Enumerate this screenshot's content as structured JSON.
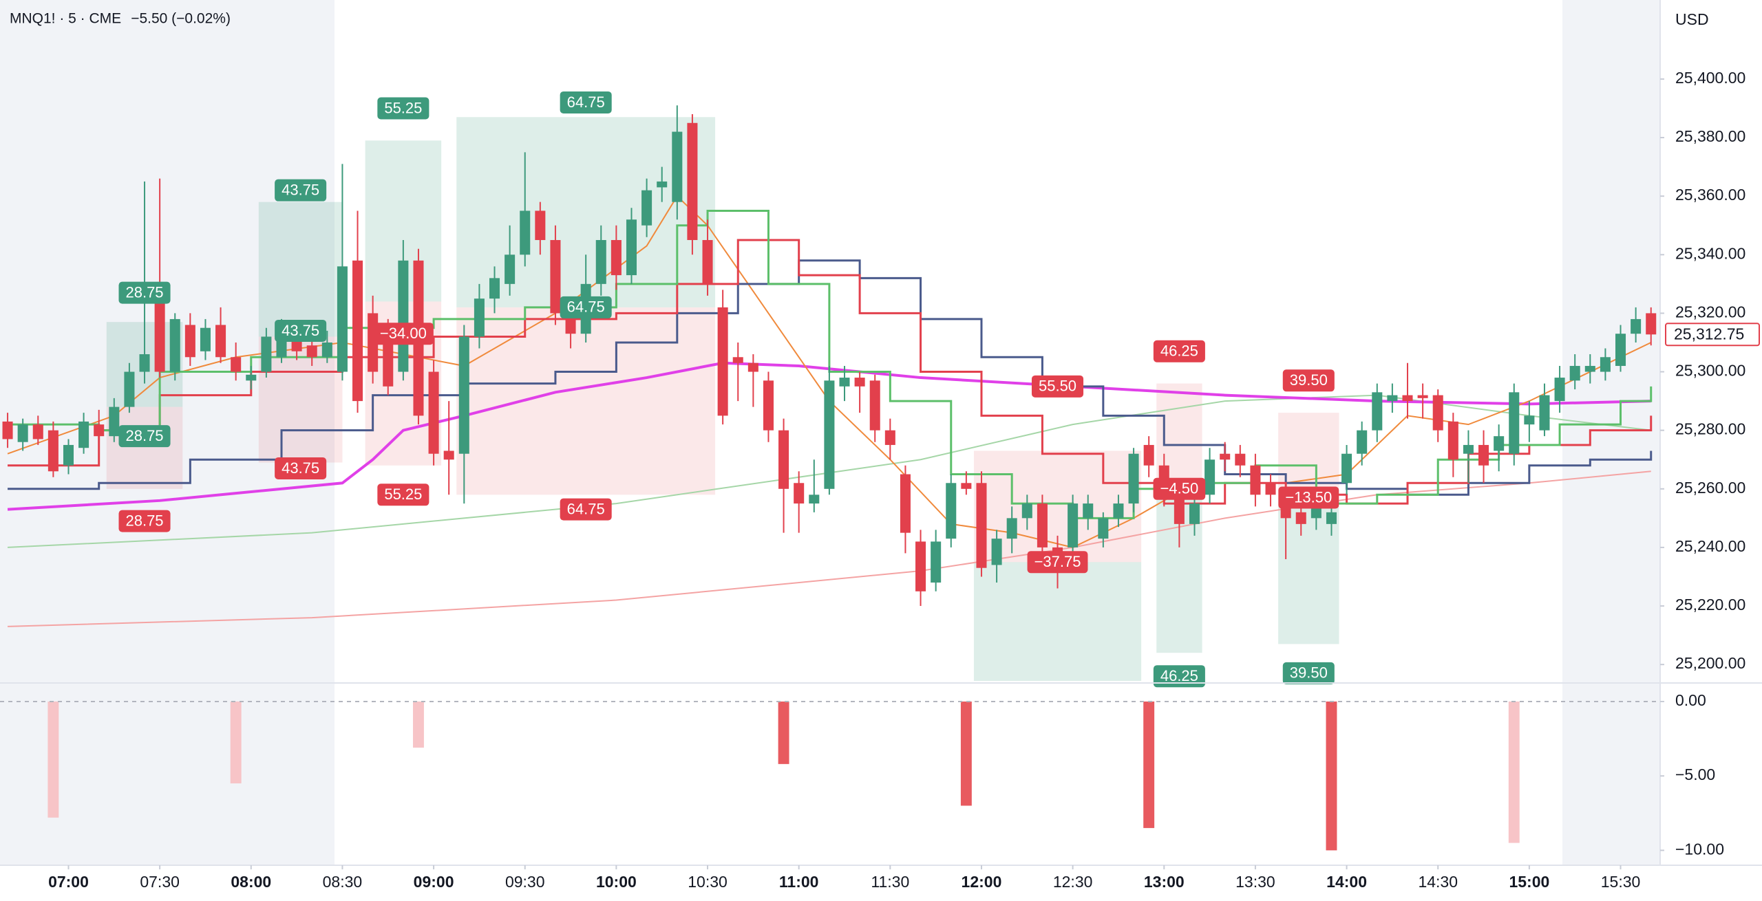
{
  "chart_data": {
    "type": "candlestick",
    "title": "MNQ1! · 5 · CME",
    "change": "−5.50 (−0.02%)",
    "change_color": "#e2404c",
    "currency": "USD",
    "up_color": "#3d9a7c",
    "down_color": "#e2404c",
    "open": [
      25283,
      25276,
      25282,
      25280,
      25268,
      25274,
      25282,
      25278,
      25288,
      25300,
      25330,
      25300,
      25316,
      25307,
      25316,
      25305,
      25297,
      25300,
      25305,
      25312,
      25309,
      25305,
      25300,
      25338,
      25320,
      25315,
      25300,
      25338,
      25300,
      25273,
      25272,
      25312,
      25325,
      25330,
      25340,
      25355,
      25345,
      25320,
      25313,
      25330,
      25345,
      25333,
      25350,
      25363,
      25358,
      25385,
      25345,
      25322,
      25305,
      25303,
      25297,
      25280,
      25262,
      25255,
      25260,
      25295,
      25298,
      25297,
      25280,
      25265,
      25242,
      25228,
      25243,
      25262,
      25262,
      25234,
      25243,
      25250,
      25255,
      25240,
      25240,
      25250,
      25243,
      25250,
      25255,
      25275,
      25268,
      25258,
      25248,
      25258,
      25272,
      25272,
      25268,
      25262,
      25255,
      25252,
      25250,
      25248,
      25262,
      25272,
      25280,
      25290,
      25292,
      25292,
      25292,
      25283,
      25272,
      25275,
      25273,
      25272,
      25282,
      25280,
      25290,
      25297,
      25300,
      25300,
      25302,
      25313,
      25320
    ],
    "high": [
      25286,
      25284,
      25285,
      25283,
      25277,
      25286,
      25287,
      25291,
      25303,
      25365,
      25366,
      25320,
      25320,
      25318,
      25322,
      25310,
      25302,
      25315,
      25318,
      25316,
      25313,
      25314,
      25371,
      25355,
      25326,
      25318,
      25345,
      25342,
      25304,
      25290,
      25316,
      25330,
      25336,
      25350,
      25375,
      25358,
      25350,
      25324,
      25340,
      25350,
      25350,
      25356,
      25366,
      25370,
      25391,
      25388,
      25352,
      25328,
      25310,
      25306,
      25300,
      25284,
      25266,
      25270,
      25302,
      25302,
      25300,
      25299,
      25284,
      25268,
      25246,
      25246,
      25265,
      25266,
      25266,
      25246,
      25254,
      25258,
      25258,
      25244,
      25258,
      25258,
      25252,
      25258,
      25274,
      25278,
      25272,
      25262,
      25258,
      25274,
      25276,
      25275,
      25272,
      25265,
      25258,
      25256,
      25258,
      25254,
      25275,
      25283,
      25296,
      25296,
      25303,
      25296,
      25294,
      25286,
      25280,
      25280,
      25282,
      25296,
      25290,
      25296,
      25302,
      25306,
      25306,
      25308,
      25316,
      25322,
      25322
    ],
    "low": [
      25274,
      25273,
      25275,
      25264,
      25265,
      25272,
      25276,
      25276,
      25286,
      25296,
      25298,
      25297,
      25302,
      25304,
      25303,
      25297,
      25294,
      25298,
      25303,
      25304,
      25302,
      25303,
      25297,
      25286,
      25296,
      25292,
      25297,
      25282,
      25268,
      25258,
      25255,
      25308,
      25320,
      25326,
      25336,
      25340,
      25316,
      25308,
      25310,
      25326,
      25328,
      25330,
      25346,
      25358,
      25352,
      25340,
      25326,
      25282,
      25290,
      25288,
      25276,
      25245,
      25245,
      25252,
      25258,
      25290,
      25286,
      25276,
      25270,
      25238,
      25220,
      25225,
      25240,
      25258,
      25230,
      25228,
      25238,
      25246,
      25236,
      25226,
      25236,
      25246,
      25240,
      25247,
      25252,
      25264,
      25254,
      25240,
      25244,
      25255,
      25266,
      25264,
      25254,
      25254,
      25236,
      25244,
      25246,
      25244,
      25258,
      25268,
      25276,
      25286,
      25284,
      25284,
      25276,
      25264,
      25262,
      25262,
      25266,
      25268,
      25276,
      25278,
      25286,
      25294,
      25296,
      25297,
      25300,
      25310,
      25309
    ],
    "close": [
      25277,
      25282,
      25277,
      25266,
      25275,
      25283,
      25278,
      25288,
      25300,
      25306,
      25300,
      25318,
      25305,
      25315,
      25305,
      25300,
      25299,
      25312,
      25315,
      25307,
      25305,
      25310,
      25336,
      25290,
      25300,
      25295,
      25338,
      25285,
      25272,
      25270,
      25312,
      25325,
      25332,
      25340,
      25355,
      25345,
      25320,
      25313,
      25330,
      25345,
      25333,
      25352,
      25362,
      25365,
      25382,
      25345,
      25330,
      25285,
      25303,
      25300,
      25280,
      25260,
      25255,
      25258,
      25297,
      25298,
      25295,
      25280,
      25275,
      25245,
      25225,
      25242,
      25262,
      25260,
      25233,
      25243,
      25250,
      25255,
      25240,
      25235,
      25255,
      25255,
      25250,
      25255,
      25272,
      25268,
      25258,
      25248,
      25255,
      25270,
      25270,
      25268,
      25258,
      25258,
      25250,
      25248,
      25255,
      25252,
      25272,
      25280,
      25293,
      25292,
      25290,
      25291,
      25280,
      25270,
      25275,
      25268,
      25278,
      25293,
      25285,
      25292,
      25298,
      25302,
      25302,
      25305,
      25313,
      25318,
      25312.75
    ],
    "last_price_label": "25,312.75",
    "xlim": [
      -0.5,
      108.6
    ],
    "ylim": [
      25194.4,
      25427
    ],
    "yticks": [
      {
        "value": 25200,
        "label": "25,200.00"
      },
      {
        "value": 25220,
        "label": "25,220.00"
      },
      {
        "value": 25240,
        "label": "25,240.00"
      },
      {
        "value": 25260,
        "label": "25,260.00"
      },
      {
        "value": 25280,
        "label": "25,280.00"
      },
      {
        "value": 25300,
        "label": "25,300.00"
      },
      {
        "value": 25320,
        "label": "25,320.00"
      },
      {
        "value": 25340,
        "label": "25,340.00"
      },
      {
        "value": 25360,
        "label": "25,360.00"
      },
      {
        "value": 25380,
        "label": "25,380.00"
      },
      {
        "value": 25400,
        "label": "25,400.00"
      }
    ],
    "xticks": [
      {
        "value": 4,
        "label": "07:00",
        "bold": true
      },
      {
        "value": 10,
        "label": "07:30",
        "bold": false
      },
      {
        "value": 16,
        "label": "08:00",
        "bold": true
      },
      {
        "value": 22,
        "label": "08:30",
        "bold": false
      },
      {
        "value": 28,
        "label": "09:00",
        "bold": true
      },
      {
        "value": 34,
        "label": "09:30",
        "bold": false
      },
      {
        "value": 40,
        "label": "10:00",
        "bold": true
      },
      {
        "value": 46,
        "label": "10:30",
        "bold": false
      },
      {
        "value": 52,
        "label": "11:00",
        "bold": true
      },
      {
        "value": 58,
        "label": "11:30",
        "bold": false
      },
      {
        "value": 64,
        "label": "12:00",
        "bold": true
      },
      {
        "value": 70,
        "label": "12:30",
        "bold": false
      },
      {
        "value": 76,
        "label": "13:00",
        "bold": true
      },
      {
        "value": 82,
        "label": "13:30",
        "bold": false
      },
      {
        "value": 88,
        "label": "14:00",
        "bold": true
      },
      {
        "value": 94,
        "label": "14:30",
        "bold": false
      },
      {
        "value": 100,
        "label": "15:00",
        "bold": true
      },
      {
        "value": 106,
        "label": "15:30",
        "bold": false
      }
    ],
    "lines": [
      {
        "color": "#a5d6a7",
        "width": 2,
        "step": false,
        "x": [
          0,
          20,
          40,
          60,
          70,
          80,
          90,
          100,
          108
        ],
        "values": [
          25240,
          25245,
          25255,
          25270,
          25282,
          25290,
          25292,
          25285,
          25280
        ]
      },
      {
        "color": "#f4a3a3",
        "width": 2,
        "step": false,
        "x": [
          0,
          20,
          40,
          60,
          70,
          80,
          90,
          100,
          108
        ],
        "values": [
          25213,
          25216,
          25222,
          25232,
          25240,
          25250,
          25258,
          25262,
          25266
        ]
      },
      {
        "color": "#e040e8",
        "width": 4,
        "step": false,
        "x": [
          0,
          10,
          16,
          22,
          24,
          26,
          30,
          36,
          42,
          47,
          52,
          60,
          70,
          80,
          90,
          100,
          108
        ],
        "values": [
          25253,
          25256,
          25259,
          25262,
          25270,
          25280,
          25285,
          25293,
          25298,
          25303,
          25302,
          25298,
          25295,
          25292,
          25290,
          25289,
          25290
        ]
      },
      {
        "color": "#f08a3c",
        "width": 2,
        "step": false,
        "x": [
          0,
          7,
          10,
          15,
          22,
          30,
          36,
          42,
          44,
          46,
          50,
          54,
          58,
          62,
          66,
          70,
          74,
          78,
          84,
          88,
          92,
          96,
          100,
          104,
          108
        ],
        "values": [
          25272,
          25285,
          25298,
          25305,
          25310,
          25302,
          25320,
          25343,
          25360,
          25350,
          25320,
          25290,
          25270,
          25248,
          25245,
          25240,
          25250,
          25262,
          25262,
          25265,
          25285,
          25282,
          25290,
          25300,
          25310
        ]
      },
      {
        "color": "#4a5a8c",
        "width": 3,
        "step": true,
        "x": [
          0,
          6,
          12,
          18,
          24,
          30,
          36,
          40,
          44,
          48,
          52,
          56,
          60,
          64,
          68,
          72,
          76,
          80,
          84,
          88,
          92,
          96,
          100,
          104,
          108
        ],
        "values": [
          25260,
          25262,
          25270,
          25280,
          25292,
          25296,
          25300,
          25310,
          25320,
          25330,
          25338,
          25332,
          25318,
          25305,
          25295,
          25285,
          25275,
          25265,
          25262,
          25260,
          25258,
          25262,
          25268,
          25270,
          25273
        ]
      },
      {
        "color": "#e2404c",
        "width": 3,
        "step": true,
        "x": [
          0,
          6,
          10,
          16,
          22,
          28,
          34,
          40,
          44,
          48,
          52,
          56,
          60,
          64,
          68,
          72,
          76,
          80,
          84,
          88,
          92,
          96,
          100,
          104,
          108
        ],
        "values": [
          25268,
          25280,
          25292,
          25300,
          25305,
          25312,
          25318,
          25320,
          25330,
          25345,
          25333,
          25320,
          25300,
          25285,
          25272,
          25262,
          25255,
          25262,
          25258,
          25255,
          25262,
          25272,
          25275,
          25280,
          25285
        ]
      },
      {
        "color": "#5cbf6a",
        "width": 3,
        "step": true,
        "x": [
          0,
          6,
          10,
          16,
          22,
          28,
          34,
          40,
          44,
          46,
          50,
          54,
          58,
          62,
          66,
          70,
          74,
          78,
          82,
          86,
          90,
          94,
          98,
          102,
          106,
          108
        ],
        "values": [
          25282,
          25280,
          25300,
          25305,
          25315,
          25318,
          25322,
          25330,
          25350,
          25355,
          25330,
          25300,
          25290,
          25265,
          25255,
          25250,
          25260,
          25262,
          25268,
          25255,
          25258,
          25270,
          25275,
          25282,
          25290,
          25295
        ]
      }
    ],
    "trades": [
      {
        "x0": 7,
        "x1": 11,
        "entry": 25288,
        "target": 25317,
        "stop": 25260,
        "labels": [
          {
            "text": "28.75",
            "price": 25327,
            "color": "#3d9a7c"
          },
          {
            "text": "28.75",
            "price": 25278,
            "color": "#3d9a7c"
          },
          {
            "text": "28.75",
            "price": 25249,
            "color": "#e2404c"
          }
        ]
      },
      {
        "x0": 17,
        "x1": 21.5,
        "entry": 25312,
        "target": 25358,
        "stop": 25269,
        "labels": [
          {
            "text": "43.75",
            "price": 25362,
            "color": "#3d9a7c"
          },
          {
            "text": "43.75",
            "price": 25314,
            "color": "#3d9a7c"
          },
          {
            "text": "43.75",
            "price": 25267,
            "color": "#e2404c"
          }
        ]
      },
      {
        "x0": 24,
        "x1": 28,
        "entry": 25324,
        "target": 25379,
        "stop": 25268,
        "labels": [
          {
            "text": "55.25",
            "price": 25390,
            "color": "#3d9a7c"
          },
          {
            "text": "−34.00",
            "price": 25313,
            "color": "#e2404c"
          },
          {
            "text": "55.25",
            "price": 25258,
            "color": "#e2404c"
          }
        ]
      },
      {
        "x0": 30,
        "x1": 46,
        "entry": 25322,
        "target": 25387,
        "stop": 25258,
        "labels": [
          {
            "text": "64.75",
            "price": 25392,
            "color": "#3d9a7c"
          },
          {
            "text": "64.75",
            "price": 25322,
            "color": "#3d9a7c"
          },
          {
            "text": "64.75",
            "price": 25253,
            "color": "#e2404c"
          }
        ]
      },
      {
        "x0": 64,
        "x1": 74,
        "entry": 25235,
        "target": 25194.4,
        "stop": 25273,
        "labels": [
          {
            "text": "55.50",
            "price": 25295,
            "color": "#e2404c"
          },
          {
            "text": "−37.75",
            "price": 25235,
            "color": "#e2404c"
          }
        ]
      },
      {
        "x0": 76,
        "x1": 78,
        "entry": 25261,
        "target": 25204,
        "stop": 25296,
        "labels": [
          {
            "text": "46.25",
            "price": 25307,
            "color": "#e2404c"
          },
          {
            "text": "−4.50",
            "price": 25260,
            "color": "#e2404c"
          },
          {
            "text": "46.25",
            "price": 25196,
            "color": "#3d9a7c"
          }
        ]
      },
      {
        "x0": 84,
        "x1": 87,
        "entry": 25257,
        "target": 25207,
        "stop": 25286,
        "labels": [
          {
            "text": "39.50",
            "price": 25297,
            "color": "#e2404c"
          },
          {
            "text": "−13.50",
            "price": 25257,
            "color": "#e2404c"
          },
          {
            "text": "39.50",
            "price": 25197,
            "color": "#3d9a7c"
          }
        ]
      }
    ],
    "indicator": {
      "ylim": [
        -11,
        1.2
      ],
      "yticks": [
        {
          "value": 0,
          "label": "0.00"
        },
        {
          "value": -5,
          "label": "−5.00"
        },
        {
          "value": -10,
          "label": "−10.00"
        }
      ],
      "x": [
        3,
        15,
        27,
        51,
        63,
        75,
        87,
        99
      ],
      "values": [
        -7.8,
        -5.5,
        -3.1,
        -4.2,
        -7,
        -8.5,
        -10,
        -9.5
      ],
      "colors": [
        "#f7c4c7",
        "#f7c4c7",
        "#f7c4c7",
        "#e85a5f",
        "#e85a5f",
        "#e85a5f",
        "#e85a5f",
        "#f7c4c7"
      ]
    }
  }
}
